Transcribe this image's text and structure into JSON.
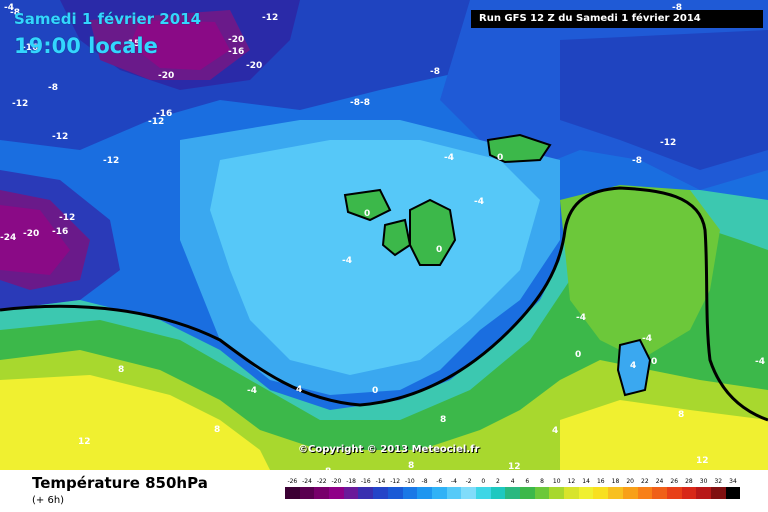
{
  "overlay": {
    "date": "Samedi 1 février 2014",
    "local_time": "19:00 locale",
    "run_info": "Run GFS 12 Z du Samedi 1 février 2014",
    "copyright": "©Copyright © 2013 Meteociel.fr"
  },
  "footer": {
    "title": "Température 850hPa",
    "subtitle": "(+ 6h)"
  },
  "legend": {
    "values": [
      "-26",
      "-24",
      "-22",
      "-20",
      "-18",
      "-16",
      "-14",
      "-12",
      "-10",
      "-8",
      "-6",
      "-4",
      "-2",
      "0",
      "2",
      "4",
      "6",
      "8",
      "10",
      "12",
      "14",
      "16",
      "18",
      "20",
      "22",
      "24",
      "26",
      "28",
      "30",
      "32",
      "34"
    ],
    "colors": [
      "#3b0033",
      "#5a0050",
      "#78006b",
      "#8f0087",
      "#6a1a9a",
      "#3a2fb0",
      "#2444c8",
      "#1a5ad6",
      "#1a78e6",
      "#1e96f0",
      "#30b2f6",
      "#56caf8",
      "#80dcfa",
      "#3ed6e6",
      "#1ec8c0",
      "#2ab880",
      "#3cb84a",
      "#6cc83a",
      "#a8d82e",
      "#d8e42c",
      "#f0f030",
      "#f8e020",
      "#f8c020",
      "#f8a018",
      "#f88018",
      "#f06018",
      "#e84018",
      "#d82818",
      "#b81818",
      "#801010",
      "#000000"
    ]
  },
  "map": {
    "labels": [
      {
        "t": "-12"
      },
      {
        "t": "-20"
      },
      {
        "t": "-16"
      },
      {
        "t": "-15"
      },
      {
        "t": "-8"
      },
      {
        "t": "-20"
      },
      {
        "t": "-20"
      },
      {
        "t": "-16"
      },
      {
        "t": "-12"
      },
      {
        "t": "-8"
      },
      {
        "t": "-16"
      },
      {
        "t": "-12"
      },
      {
        "t": "-8"
      },
      {
        "t": "-8"
      },
      {
        "t": "-8"
      },
      {
        "t": "-12"
      },
      {
        "t": "-12"
      },
      {
        "t": "-12"
      },
      {
        "t": "-8"
      },
      {
        "t": "-12"
      },
      {
        "t": "-24"
      },
      {
        "t": "-20"
      },
      {
        "t": "-16"
      },
      {
        "t": "-4"
      },
      {
        "t": "0"
      },
      {
        "t": "-4"
      },
      {
        "t": "0"
      },
      {
        "t": "0"
      },
      {
        "t": "-4"
      },
      {
        "t": "-4"
      },
      {
        "t": "0"
      },
      {
        "t": "-4"
      },
      {
        "t": "0"
      },
      {
        "t": "-4"
      },
      {
        "t": "-4"
      },
      {
        "t": "8"
      },
      {
        "t": "-4"
      },
      {
        "t": "0"
      },
      {
        "t": "8"
      },
      {
        "t": "12"
      },
      {
        "t": "8"
      },
      {
        "t": "4"
      },
      {
        "t": "4"
      },
      {
        "t": "8"
      },
      {
        "t": "8"
      },
      {
        "t": "12"
      },
      {
        "t": "8"
      },
      {
        "t": "4"
      },
      {
        "t": "12"
      },
      {
        "t": "-8"
      }
    ]
  }
}
